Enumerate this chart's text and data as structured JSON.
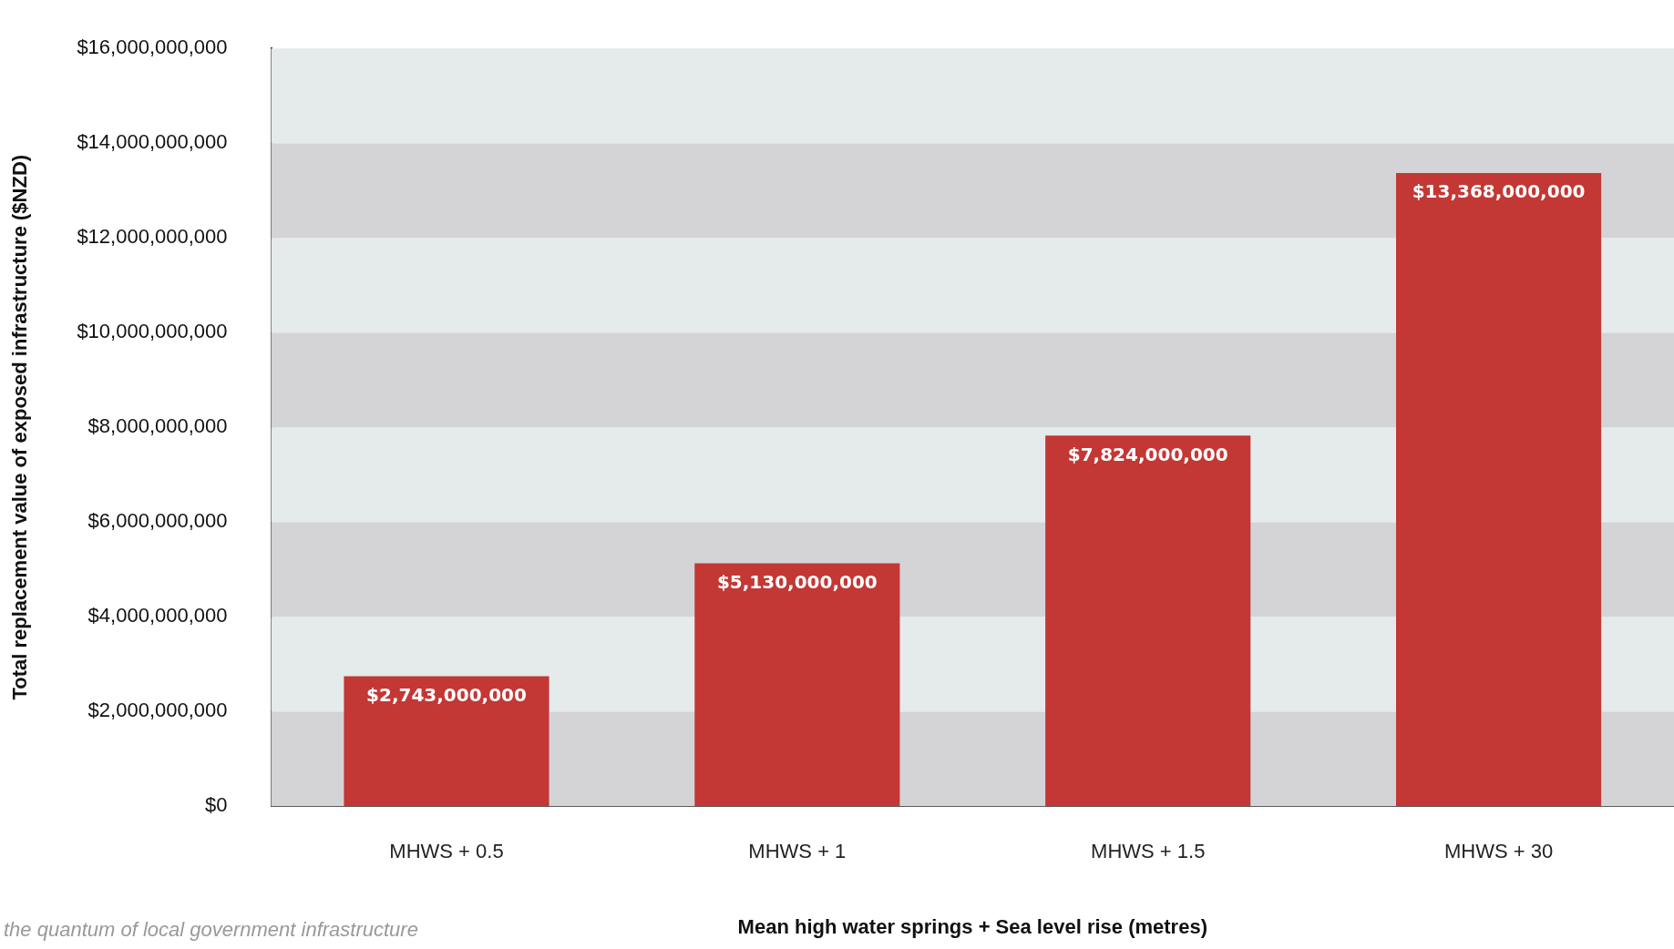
{
  "chart_data": {
    "type": "bar",
    "categories": [
      "MHWS + 0.5",
      "MHWS + 1",
      "MHWS + 1.5",
      "MHWS + 30"
    ],
    "values": [
      2743000000,
      5130000000,
      7824000000,
      13368000000
    ],
    "color": "#c33735",
    "value_labels": [
      "$2,743,000,000",
      "$5,130,000,000",
      "$7,824,000,000",
      "$13,368,000,000"
    ],
    "xlabel": "Mean high water springs + Sea level rise (metres)",
    "ylabel": "Total replacement value of exposed infrastructure ($NZD)",
    "ylim": [
      0,
      16000000000
    ],
    "yticks": [
      {
        "value": 0,
        "label": "$0"
      },
      {
        "value": 2000000000,
        "label": "$2,000,000,000"
      },
      {
        "value": 4000000000,
        "label": "$4,000,000,000"
      },
      {
        "value": 6000000000,
        "label": "$6,000,000,000"
      },
      {
        "value": 8000000000,
        "label": "$8,000,000,000"
      },
      {
        "value": 10000000000,
        "label": "$10,000,000,000"
      },
      {
        "value": 12000000000,
        "label": "$12,000,000,000"
      },
      {
        "value": 14000000000,
        "label": "$14,000,000,000"
      },
      {
        "value": 16000000000,
        "label": "$16,000,000,000"
      }
    ],
    "annotations": [
      "the quantum of local government infrastructure"
    ]
  }
}
